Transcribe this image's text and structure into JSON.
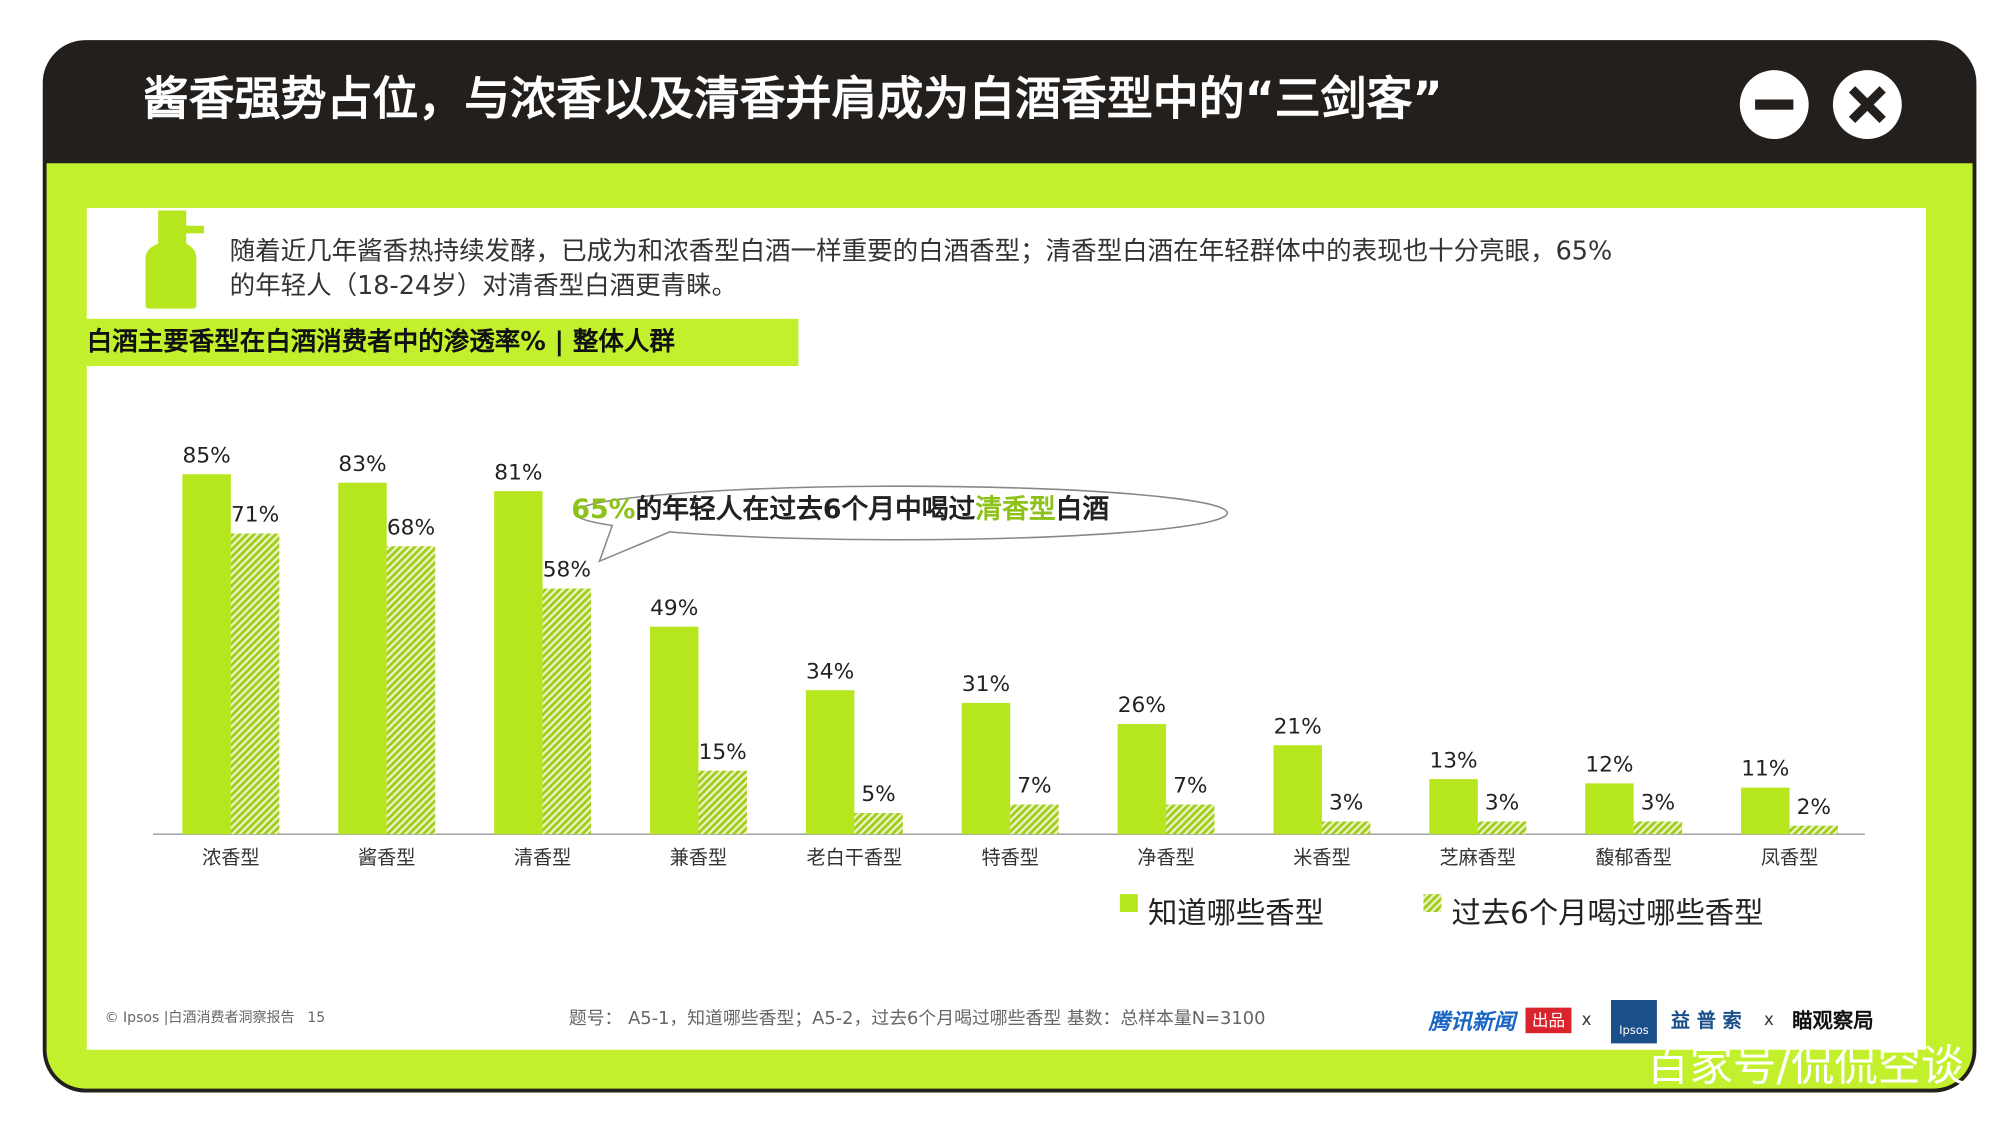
{
  "header": {
    "title": "酱香强势占位，与浓香以及清香并肩成为白酒香型中的“三剑客”"
  },
  "description": [
    "随着近几年酱香热持续发酵，已成为和浓香型白酒一样重要的白酒香型；清香型白酒在年轻群体中的表现也十分亮眼，65%",
    "的年轻人（18-24岁）对清香型白酒更青睐。"
  ],
  "chart_data": {
    "type": "bar",
    "title": "白酒主要香型在白酒消费者中的渗透率% | 整体人群",
    "categories": [
      "浓香型",
      "酱香型",
      "清香型",
      "兼香型",
      "老白干香型",
      "特香型",
      "净香型",
      "米香型",
      "芝麻香型",
      "馥郁香型",
      "凤香型"
    ],
    "series": [
      {
        "name": "知道哪些香型",
        "color": "#b6e61e",
        "values": [
          85,
          83,
          81,
          49,
          34,
          31,
          26,
          21,
          13,
          12,
          11
        ],
        "value_labels": [
          "85%",
          "83%",
          "81%",
          "49%",
          "34%",
          "31%",
          "26%",
          "21%",
          "13%",
          "12%",
          "11%"
        ]
      },
      {
        "name": "过去6个月喝过哪些香型",
        "color": "#a3cc1c",
        "pattern": "hatch",
        "values": [
          71,
          68,
          58,
          15,
          5,
          7,
          7,
          3,
          3,
          3,
          2
        ],
        "value_labels": [
          "71%",
          "68%",
          "58%",
          "15%",
          "5%",
          "7%",
          "7%",
          "3%",
          "3%",
          "3%",
          "2%"
        ]
      }
    ],
    "annotation": {
      "parts": [
        "65%",
        "的年轻人在过去6个月中喝过",
        "清香型",
        "白酒"
      ],
      "highlight_color": "#8cc21a"
    }
  },
  "footer": {
    "source": "© Ipsos |白酒消费者洞察报告",
    "page": "15",
    "note": "题号：  A5-1，知道哪些香型；A5-2，过去6个月喝过哪些香型    基数：总样本量N=3100",
    "logos": [
      "腾讯新闻",
      "出品",
      "x",
      "Ipsos",
      "益 普 索",
      "x",
      "瞄观察局"
    ],
    "watermark": "百家号/侃侃空谈"
  }
}
